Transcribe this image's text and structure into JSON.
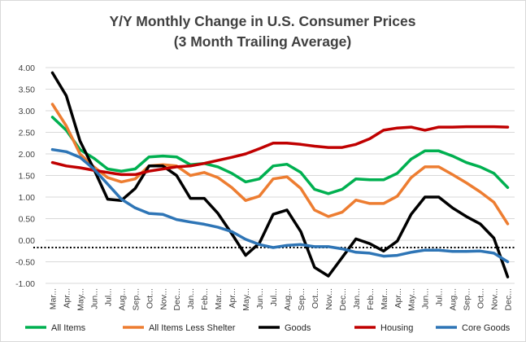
{
  "chart_data": {
    "type": "line",
    "title": "Y/Y Monthly Change in U.S. Consumer Prices",
    "subtitle": "(3 Month Trailing Average)",
    "xlabel": "",
    "ylabel": "",
    "ylim": [
      -1.0,
      4.0
    ],
    "y_ticks": [
      "4.00",
      "3.50",
      "3.00",
      "2.50",
      "2.00",
      "1.50",
      "1.00",
      "0.50",
      "0.00",
      "-0.50",
      "-1.00"
    ],
    "y_tick_values": [
      4.0,
      3.5,
      3.0,
      2.5,
      2.0,
      1.5,
      1.0,
      0.5,
      0.0,
      -0.5,
      -1.0
    ],
    "grid": "horizontal",
    "legend_position": "bottom",
    "reference_line": {
      "y": -0.17,
      "style": "dotted",
      "color": "#000000"
    },
    "categories": [
      "Mar...",
      "Apr...",
      "May...",
      "Jun...",
      "Jul...",
      "Aug...",
      "Sep...",
      "Oct...",
      "Nov...",
      "Dec...",
      "Jan...",
      "Feb...",
      "Mar...",
      "Apr...",
      "May...",
      "Jun...",
      "Jul...",
      "Aug...",
      "Sep...",
      "Oct...",
      "Nov...",
      "Dec...",
      "Jan...",
      "Feb...",
      "Mar...",
      "Apr...",
      "May...",
      "Jun...",
      "Jul...",
      "Aug...",
      "Sep...",
      "Oct...",
      "Nov...",
      "Dec..."
    ],
    "series": [
      {
        "name": "All Items",
        "color": "#00b050",
        "values": [
          2.85,
          2.55,
          2.1,
          1.9,
          1.65,
          1.6,
          1.65,
          1.93,
          1.95,
          1.93,
          1.75,
          1.78,
          1.7,
          1.55,
          1.35,
          1.42,
          1.72,
          1.76,
          1.57,
          1.18,
          1.08,
          1.18,
          1.42,
          1.4,
          1.4,
          1.55,
          1.88,
          2.07,
          2.07,
          1.95,
          1.8,
          1.7,
          1.55,
          1.22
        ]
      },
      {
        "name": "All Items Less Shelter",
        "color": "#ed7d31",
        "values": [
          3.15,
          2.65,
          2.0,
          1.7,
          1.45,
          1.35,
          1.42,
          1.72,
          1.75,
          1.72,
          1.5,
          1.57,
          1.45,
          1.22,
          0.92,
          1.02,
          1.42,
          1.47,
          1.2,
          0.7,
          0.55,
          0.65,
          0.93,
          0.85,
          0.85,
          1.02,
          1.45,
          1.7,
          1.7,
          1.52,
          1.33,
          1.12,
          0.88,
          0.38
        ]
      },
      {
        "name": "Goods",
        "color": "#000000",
        "values": [
          3.88,
          3.35,
          2.3,
          1.65,
          0.95,
          0.92,
          1.2,
          1.72,
          1.72,
          1.5,
          0.97,
          0.97,
          0.62,
          0.15,
          -0.35,
          -0.07,
          0.6,
          0.7,
          0.2,
          -0.63,
          -0.83,
          -0.4,
          0.03,
          -0.08,
          -0.25,
          -0.02,
          0.6,
          1.0,
          1.0,
          0.75,
          0.55,
          0.38,
          0.05,
          -0.85
        ]
      },
      {
        "name": "Housing",
        "color": "#c00000",
        "values": [
          1.8,
          1.72,
          1.68,
          1.62,
          1.57,
          1.52,
          1.52,
          1.6,
          1.65,
          1.7,
          1.72,
          1.78,
          1.85,
          1.92,
          2.0,
          2.12,
          2.25,
          2.25,
          2.22,
          2.18,
          2.15,
          2.15,
          2.22,
          2.35,
          2.55,
          2.6,
          2.62,
          2.55,
          2.62,
          2.62,
          2.63,
          2.63,
          2.63,
          2.62
        ]
      },
      {
        "name": "Core Goods",
        "color": "#2e75b6",
        "values": [
          2.1,
          2.05,
          1.92,
          1.65,
          1.3,
          0.95,
          0.75,
          0.62,
          0.6,
          0.48,
          0.42,
          0.37,
          0.3,
          0.2,
          0.02,
          -0.1,
          -0.17,
          -0.12,
          -0.1,
          -0.15,
          -0.15,
          -0.2,
          -0.28,
          -0.3,
          -0.37,
          -0.35,
          -0.28,
          -0.23,
          -0.23,
          -0.26,
          -0.26,
          -0.25,
          -0.3,
          -0.5
        ]
      }
    ]
  }
}
